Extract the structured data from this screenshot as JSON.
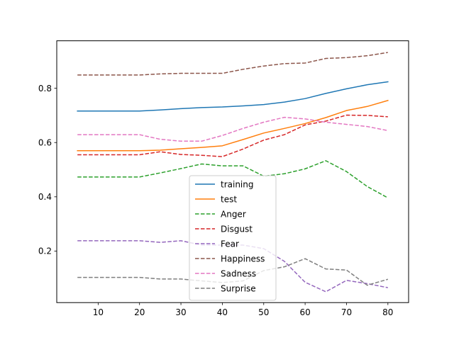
{
  "chart_data": {
    "type": "line",
    "title": "",
    "xlabel": "",
    "ylabel": "",
    "xlim": [
      0,
      85
    ],
    "ylim": [
      0.01,
      0.975
    ],
    "xticks": [
      10,
      20,
      30,
      40,
      50,
      60,
      70,
      80
    ],
    "yticks": [
      0.2,
      0.4,
      0.6,
      0.8
    ],
    "xtick_labels": [
      "10",
      "20",
      "30",
      "40",
      "50",
      "60",
      "70",
      "80"
    ],
    "ytick_labels": [
      "0.2",
      "0.4",
      "0.6",
      "0.8"
    ],
    "grid": false,
    "legend_position": "bottom-center",
    "x": [
      5,
      10,
      15,
      20,
      25,
      30,
      35,
      40,
      45,
      50,
      55,
      60,
      65,
      70,
      75,
      80
    ],
    "series": [
      {
        "name": "training",
        "color": "#1f77b4",
        "style": "solid",
        "values": [
          0.716,
          0.716,
          0.716,
          0.716,
          0.72,
          0.725,
          0.729,
          0.731,
          0.735,
          0.74,
          0.749,
          0.762,
          0.781,
          0.798,
          0.813,
          0.824
        ]
      },
      {
        "name": "test",
        "color": "#ff7f0e",
        "style": "solid",
        "values": [
          0.57,
          0.57,
          0.57,
          0.57,
          0.572,
          0.577,
          0.582,
          0.588,
          0.611,
          0.635,
          0.652,
          0.67,
          0.692,
          0.718,
          0.733,
          0.755
        ]
      },
      {
        "name": "Anger",
        "color": "#2ca02c",
        "style": "dashed",
        "values": [
          0.473,
          0.473,
          0.473,
          0.473,
          0.488,
          0.504,
          0.521,
          0.514,
          0.514,
          0.476,
          0.485,
          0.503,
          0.533,
          0.493,
          0.438,
          0.396
        ]
      },
      {
        "name": "Disgust",
        "color": "#d62728",
        "style": "dashed",
        "values": [
          0.555,
          0.555,
          0.555,
          0.555,
          0.566,
          0.556,
          0.553,
          0.548,
          0.576,
          0.609,
          0.629,
          0.665,
          0.679,
          0.701,
          0.7,
          0.695
        ]
      },
      {
        "name": "Fear",
        "color": "#9467bd",
        "style": "dashed",
        "values": [
          0.238,
          0.238,
          0.238,
          0.238,
          0.232,
          0.238,
          0.222,
          0.222,
          0.222,
          0.209,
          0.162,
          0.085,
          0.05,
          0.092,
          0.08,
          0.065
        ]
      },
      {
        "name": "Happiness",
        "color": "#8c564b",
        "style": "dashed",
        "values": [
          0.849,
          0.849,
          0.849,
          0.849,
          0.853,
          0.855,
          0.855,
          0.855,
          0.87,
          0.882,
          0.891,
          0.893,
          0.91,
          0.913,
          0.92,
          0.932
        ]
      },
      {
        "name": "Sadness",
        "color": "#e377c2",
        "style": "dashed",
        "values": [
          0.629,
          0.629,
          0.629,
          0.629,
          0.612,
          0.605,
          0.605,
          0.626,
          0.652,
          0.675,
          0.693,
          0.687,
          0.675,
          0.667,
          0.659,
          0.644
        ]
      },
      {
        "name": "Surprise",
        "color": "#7f7f7f",
        "style": "dashed",
        "values": [
          0.103,
          0.103,
          0.103,
          0.103,
          0.097,
          0.097,
          0.09,
          0.084,
          0.09,
          0.128,
          0.142,
          0.172,
          0.134,
          0.13,
          0.074,
          0.096
        ]
      }
    ]
  }
}
